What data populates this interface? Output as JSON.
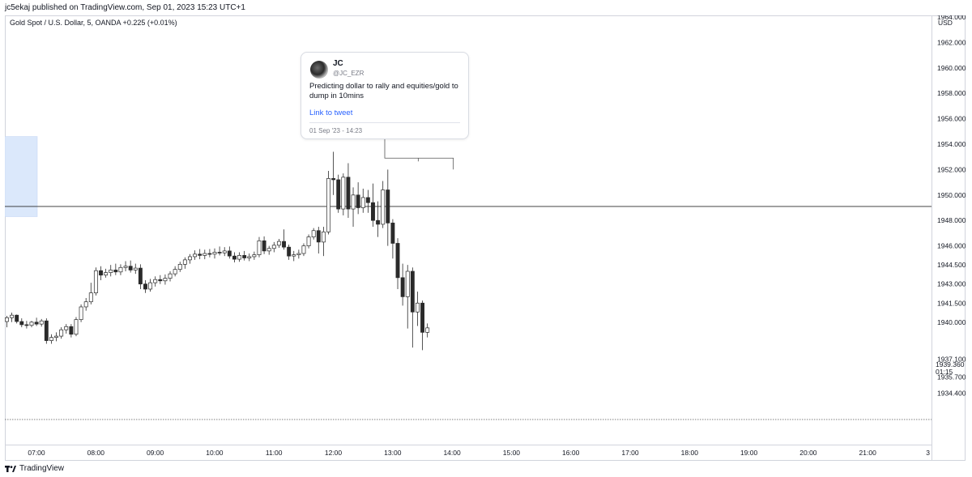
{
  "header": {
    "published": "jc5ekaj published on TradingView.com, Sep 01, 2023 15:23 UTC+1"
  },
  "symbol": {
    "line": "Gold Spot / U.S. Dollar, 5, OANDA  +0.225 (+0.01%)"
  },
  "price_axis": {
    "currency": "USD",
    "ticks": [
      "1964.000",
      "1962.000",
      "1960.000",
      "1958.000",
      "1956.000",
      "1954.000",
      "1952.000",
      "1950.000",
      "1948.000",
      "1946.000",
      "1944.500",
      "1943.000",
      "1941.500",
      "1940.000",
      "1937.100",
      "1935.700",
      "1934.400"
    ],
    "last_price": "1939.360",
    "countdown": "01:15"
  },
  "time_axis": {
    "ticks": [
      "07:00",
      "08:00",
      "09:00",
      "10:00",
      "11:00",
      "12:00",
      "13:00",
      "14:00",
      "15:00",
      "16:00",
      "17:00",
      "18:00",
      "19:00",
      "20:00",
      "21:00",
      "3"
    ]
  },
  "tweet": {
    "name": "JC",
    "handle": "@JC_EZR",
    "text": "Predicting dollar to rally and equities/gold to dump in 10mins",
    "link_label": "Link to tweet",
    "date": "01 Sep '23 - 14:23"
  },
  "footer": {
    "brand": "TradingView"
  },
  "colors": {
    "up_candle": "#ffffff",
    "down_candle": "#2a2a2a",
    "wick": "#2a2a2a",
    "highlight_zone": "#dbe8fb",
    "horizontal_line": "#2a2a2a",
    "link": "#2962ff"
  },
  "chart_data": {
    "type": "candlestick",
    "title": "Gold Spot / U.S. Dollar, 5, OANDA",
    "interval_minutes": 5,
    "ylim": [
      1933.6,
      1966.0
    ],
    "horizontal_line_price": 1949.1,
    "highlight_zone": {
      "price_top": 1954.6,
      "price_bottom": 1948.3,
      "time_start": "06:30",
      "time_end": "06:40"
    },
    "last_price": 1939.36,
    "candles": [
      {
        "t": "06:35",
        "o": 1940.05,
        "h": 1940.5,
        "l": 1939.6,
        "c": 1940.35
      },
      {
        "t": "06:40",
        "o": 1940.35,
        "h": 1940.75,
        "l": 1940.0,
        "c": 1940.55
      },
      {
        "t": "06:45",
        "o": 1940.55,
        "h": 1940.6,
        "l": 1939.9,
        "c": 1940.05
      },
      {
        "t": "06:50",
        "o": 1940.05,
        "h": 1940.3,
        "l": 1939.6,
        "c": 1939.8
      },
      {
        "t": "06:55",
        "o": 1939.8,
        "h": 1940.1,
        "l": 1939.5,
        "c": 1939.75
      },
      {
        "t": "07:00",
        "o": 1939.75,
        "h": 1940.1,
        "l": 1939.6,
        "c": 1940.0
      },
      {
        "t": "07:05",
        "o": 1940.0,
        "h": 1940.35,
        "l": 1939.7,
        "c": 1939.85
      },
      {
        "t": "07:10",
        "o": 1939.85,
        "h": 1940.25,
        "l": 1939.65,
        "c": 1940.1
      },
      {
        "t": "07:15",
        "o": 1940.1,
        "h": 1940.3,
        "l": 1938.3,
        "c": 1938.55
      },
      {
        "t": "07:20",
        "o": 1938.55,
        "h": 1939.05,
        "l": 1938.3,
        "c": 1938.8
      },
      {
        "t": "07:25",
        "o": 1938.8,
        "h": 1939.2,
        "l": 1938.5,
        "c": 1938.9
      },
      {
        "t": "07:30",
        "o": 1938.9,
        "h": 1939.6,
        "l": 1938.7,
        "c": 1939.4
      },
      {
        "t": "07:35",
        "o": 1939.4,
        "h": 1939.85,
        "l": 1939.1,
        "c": 1939.65
      },
      {
        "t": "07:40",
        "o": 1939.65,
        "h": 1939.85,
        "l": 1938.8,
        "c": 1939.05
      },
      {
        "t": "07:45",
        "o": 1939.05,
        "h": 1940.4,
        "l": 1938.9,
        "c": 1940.2
      },
      {
        "t": "07:50",
        "o": 1940.2,
        "h": 1941.4,
        "l": 1940.0,
        "c": 1941.2
      },
      {
        "t": "07:55",
        "o": 1941.2,
        "h": 1941.9,
        "l": 1940.9,
        "c": 1941.6
      },
      {
        "t": "08:00",
        "o": 1941.6,
        "h": 1943.1,
        "l": 1941.4,
        "c": 1942.3
      },
      {
        "t": "08:05",
        "o": 1942.3,
        "h": 1944.3,
        "l": 1942.1,
        "c": 1944.05
      },
      {
        "t": "08:10",
        "o": 1944.05,
        "h": 1944.4,
        "l": 1943.3,
        "c": 1943.7
      },
      {
        "t": "08:15",
        "o": 1943.7,
        "h": 1944.2,
        "l": 1943.5,
        "c": 1943.9
      },
      {
        "t": "08:20",
        "o": 1943.9,
        "h": 1944.5,
        "l": 1943.6,
        "c": 1944.1
      },
      {
        "t": "08:25",
        "o": 1944.1,
        "h": 1944.6,
        "l": 1943.7,
        "c": 1943.95
      },
      {
        "t": "08:30",
        "o": 1943.95,
        "h": 1944.55,
        "l": 1943.7,
        "c": 1944.3
      },
      {
        "t": "08:35",
        "o": 1944.3,
        "h": 1944.8,
        "l": 1944.0,
        "c": 1944.4
      },
      {
        "t": "08:40",
        "o": 1944.4,
        "h": 1944.85,
        "l": 1943.9,
        "c": 1944.1
      },
      {
        "t": "08:45",
        "o": 1944.1,
        "h": 1944.6,
        "l": 1943.8,
        "c": 1944.25
      },
      {
        "t": "08:50",
        "o": 1944.25,
        "h": 1944.55,
        "l": 1942.6,
        "c": 1943.0
      },
      {
        "t": "08:55",
        "o": 1943.0,
        "h": 1943.3,
        "l": 1942.3,
        "c": 1942.6
      },
      {
        "t": "09:00",
        "o": 1942.6,
        "h": 1943.4,
        "l": 1942.4,
        "c": 1943.1
      },
      {
        "t": "09:05",
        "o": 1943.1,
        "h": 1943.6,
        "l": 1942.8,
        "c": 1943.35
      },
      {
        "t": "09:10",
        "o": 1943.35,
        "h": 1943.7,
        "l": 1943.0,
        "c": 1943.25
      },
      {
        "t": "09:15",
        "o": 1943.25,
        "h": 1943.75,
        "l": 1942.95,
        "c": 1943.45
      },
      {
        "t": "09:20",
        "o": 1943.45,
        "h": 1944.0,
        "l": 1943.2,
        "c": 1943.8
      },
      {
        "t": "09:25",
        "o": 1943.8,
        "h": 1944.4,
        "l": 1943.6,
        "c": 1944.15
      },
      {
        "t": "09:30",
        "o": 1944.15,
        "h": 1944.75,
        "l": 1943.95,
        "c": 1944.55
      },
      {
        "t": "09:35",
        "o": 1944.55,
        "h": 1945.1,
        "l": 1944.2,
        "c": 1944.9
      },
      {
        "t": "09:40",
        "o": 1944.9,
        "h": 1945.35,
        "l": 1944.6,
        "c": 1945.15
      },
      {
        "t": "09:45",
        "o": 1945.15,
        "h": 1945.65,
        "l": 1944.9,
        "c": 1945.35
      },
      {
        "t": "09:50",
        "o": 1945.35,
        "h": 1945.75,
        "l": 1944.95,
        "c": 1945.25
      },
      {
        "t": "09:55",
        "o": 1945.25,
        "h": 1945.7,
        "l": 1944.95,
        "c": 1945.4
      },
      {
        "t": "10:00",
        "o": 1945.4,
        "h": 1945.75,
        "l": 1945.1,
        "c": 1945.35
      },
      {
        "t": "10:05",
        "o": 1945.35,
        "h": 1945.8,
        "l": 1945.0,
        "c": 1945.5
      },
      {
        "t": "10:10",
        "o": 1945.5,
        "h": 1945.95,
        "l": 1945.25,
        "c": 1945.45
      },
      {
        "t": "10:15",
        "o": 1945.45,
        "h": 1945.9,
        "l": 1945.2,
        "c": 1945.6
      },
      {
        "t": "10:20",
        "o": 1945.6,
        "h": 1945.95,
        "l": 1945.0,
        "c": 1945.2
      },
      {
        "t": "10:25",
        "o": 1945.2,
        "h": 1945.5,
        "l": 1944.7,
        "c": 1944.95
      },
      {
        "t": "10:30",
        "o": 1944.95,
        "h": 1945.5,
        "l": 1944.75,
        "c": 1945.25
      },
      {
        "t": "10:35",
        "o": 1945.25,
        "h": 1945.6,
        "l": 1944.85,
        "c": 1945.05
      },
      {
        "t": "10:40",
        "o": 1945.05,
        "h": 1945.4,
        "l": 1944.8,
        "c": 1945.15
      },
      {
        "t": "10:45",
        "o": 1945.15,
        "h": 1945.55,
        "l": 1944.9,
        "c": 1945.3
      },
      {
        "t": "10:50",
        "o": 1945.3,
        "h": 1946.7,
        "l": 1945.1,
        "c": 1946.4
      },
      {
        "t": "10:55",
        "o": 1946.4,
        "h": 1946.75,
        "l": 1945.35,
        "c": 1945.6
      },
      {
        "t": "11:00",
        "o": 1945.6,
        "h": 1946.0,
        "l": 1945.3,
        "c": 1945.8
      },
      {
        "t": "11:05",
        "o": 1945.8,
        "h": 1946.3,
        "l": 1945.5,
        "c": 1946.05
      },
      {
        "t": "11:10",
        "o": 1946.05,
        "h": 1946.55,
        "l": 1945.85,
        "c": 1946.35
      },
      {
        "t": "11:15",
        "o": 1946.35,
        "h": 1947.3,
        "l": 1945.7,
        "c": 1945.9
      },
      {
        "t": "11:20",
        "o": 1945.9,
        "h": 1946.1,
        "l": 1944.9,
        "c": 1945.2
      },
      {
        "t": "11:25",
        "o": 1945.2,
        "h": 1945.6,
        "l": 1944.8,
        "c": 1945.3
      },
      {
        "t": "11:30",
        "o": 1945.3,
        "h": 1945.7,
        "l": 1945.0,
        "c": 1945.4
      },
      {
        "t": "11:35",
        "o": 1945.4,
        "h": 1946.2,
        "l": 1945.2,
        "c": 1946.0
      },
      {
        "t": "11:40",
        "o": 1946.0,
        "h": 1946.9,
        "l": 1945.8,
        "c": 1946.7
      },
      {
        "t": "11:45",
        "o": 1946.7,
        "h": 1947.4,
        "l": 1946.5,
        "c": 1947.2
      },
      {
        "t": "11:50",
        "o": 1947.2,
        "h": 1947.5,
        "l": 1945.4,
        "c": 1946.3
      },
      {
        "t": "11:55",
        "o": 1946.3,
        "h": 1947.5,
        "l": 1945.2,
        "c": 1947.1
      },
      {
        "t": "12:00",
        "o": 1947.1,
        "h": 1951.9,
        "l": 1946.9,
        "c": 1951.3
      },
      {
        "t": "12:05",
        "o": 1951.3,
        "h": 1953.4,
        "l": 1950.0,
        "c": 1951.2
      },
      {
        "t": "12:10",
        "o": 1951.2,
        "h": 1951.6,
        "l": 1948.6,
        "c": 1948.9
      },
      {
        "t": "12:15",
        "o": 1948.9,
        "h": 1951.7,
        "l": 1948.4,
        "c": 1951.4
      },
      {
        "t": "12:20",
        "o": 1951.4,
        "h": 1952.5,
        "l": 1948.2,
        "c": 1948.9
      },
      {
        "t": "12:25",
        "o": 1948.9,
        "h": 1950.6,
        "l": 1947.5,
        "c": 1950.0
      },
      {
        "t": "12:30",
        "o": 1950.0,
        "h": 1951.0,
        "l": 1948.5,
        "c": 1949.0
      },
      {
        "t": "12:35",
        "o": 1949.0,
        "h": 1950.5,
        "l": 1948.6,
        "c": 1949.8
      },
      {
        "t": "12:40",
        "o": 1949.8,
        "h": 1950.4,
        "l": 1948.6,
        "c": 1949.4
      },
      {
        "t": "12:45",
        "o": 1949.4,
        "h": 1950.9,
        "l": 1947.5,
        "c": 1948.0
      },
      {
        "t": "12:50",
        "o": 1948.0,
        "h": 1949.5,
        "l": 1946.7,
        "c": 1947.7
      },
      {
        "t": "12:55",
        "o": 1947.7,
        "h": 1951.1,
        "l": 1947.4,
        "c": 1950.4
      },
      {
        "t": "13:00",
        "o": 1950.4,
        "h": 1952.0,
        "l": 1946.0,
        "c": 1947.8
      },
      {
        "t": "13:05",
        "o": 1947.8,
        "h": 1948.1,
        "l": 1945.0,
        "c": 1946.2
      },
      {
        "t": "13:10",
        "o": 1946.2,
        "h": 1946.6,
        "l": 1942.6,
        "c": 1943.5
      },
      {
        "t": "13:15",
        "o": 1943.5,
        "h": 1944.6,
        "l": 1941.3,
        "c": 1942.0
      },
      {
        "t": "13:20",
        "o": 1942.0,
        "h": 1944.5,
        "l": 1939.5,
        "c": 1944.0
      },
      {
        "t": "13:25",
        "o": 1944.0,
        "h": 1944.3,
        "l": 1938.0,
        "c": 1940.8
      },
      {
        "t": "13:30",
        "o": 1940.8,
        "h": 1942.4,
        "l": 1939.7,
        "c": 1941.5
      },
      {
        "t": "13:35",
        "o": 1941.5,
        "h": 1941.7,
        "l": 1937.8,
        "c": 1939.2
      },
      {
        "t": "13:40",
        "o": 1939.2,
        "h": 1939.9,
        "l": 1938.8,
        "c": 1939.55
      }
    ],
    "annotation": {
      "type": "tweet",
      "time_start": "13:25",
      "time_end": "13:40",
      "price": 1952.9
    }
  }
}
